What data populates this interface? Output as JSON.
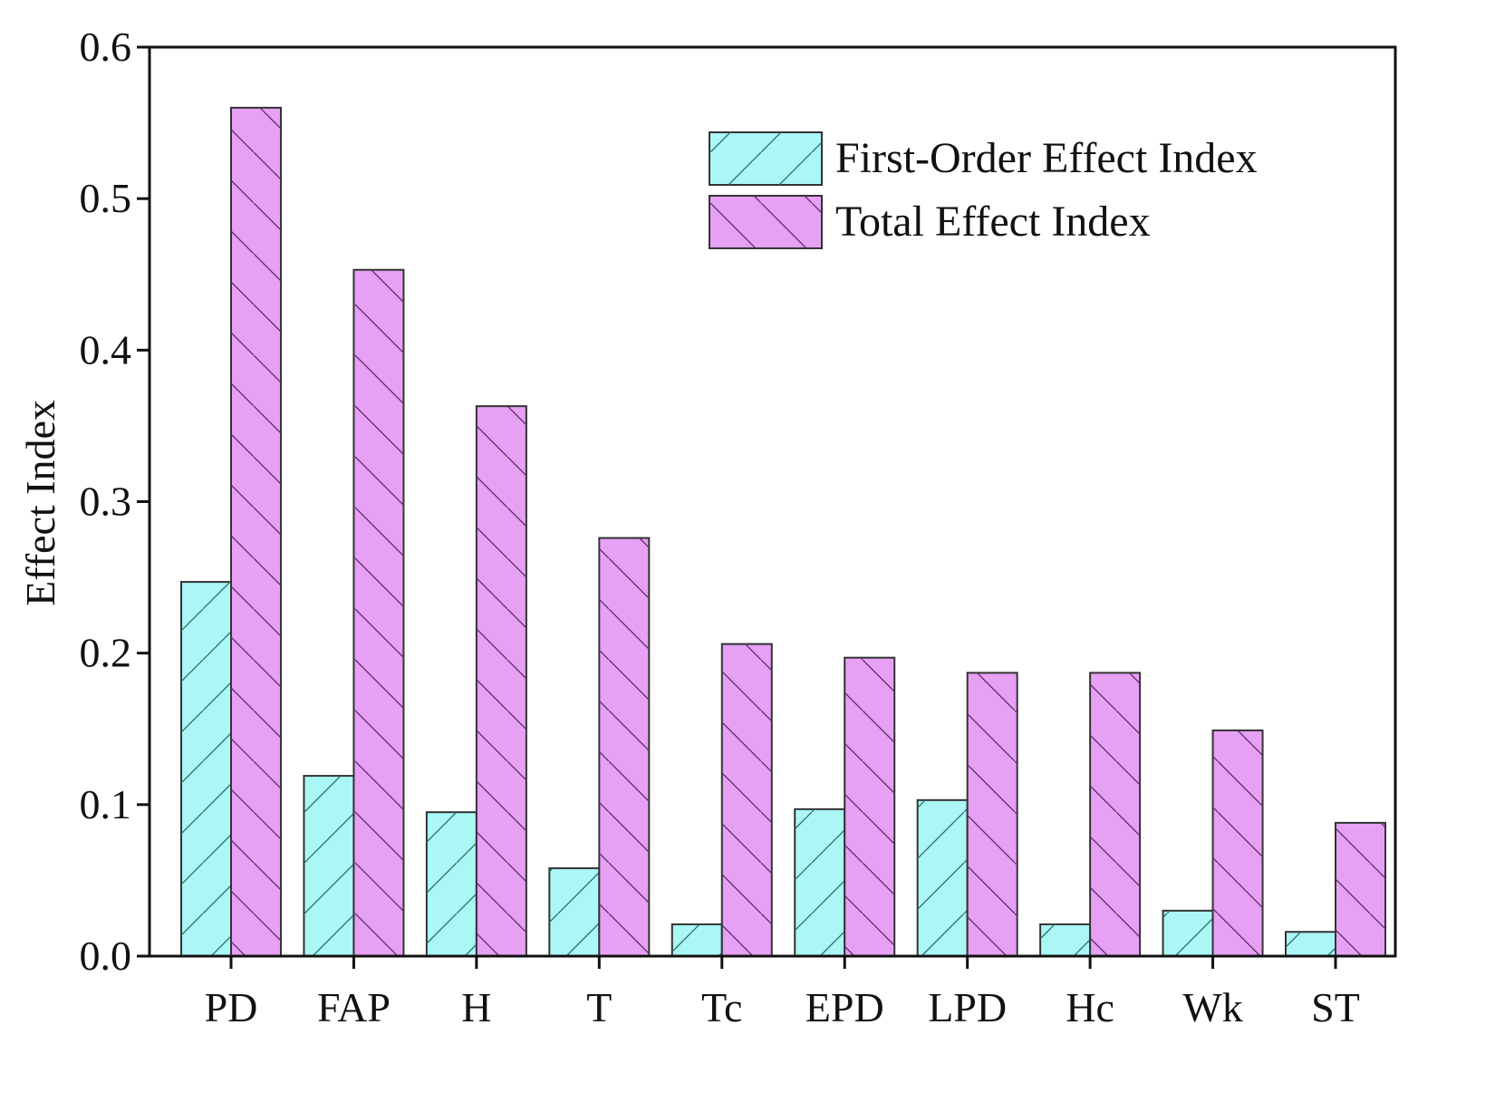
{
  "chart_data": {
    "type": "bar",
    "y_label": "Effect Index",
    "categories": [
      "PD",
      "FAP",
      "H",
      "T",
      "Tc",
      "EPD",
      "LPD",
      "Hc",
      "Wk",
      "ST"
    ],
    "series": [
      {
        "name": "First-Order Effect Index",
        "color": "#aaf7f5",
        "values": [
          0.247,
          0.119,
          0.095,
          0.058,
          0.021,
          0.097,
          0.103,
          0.021,
          0.03,
          0.016
        ]
      },
      {
        "name": "Total Effect Index",
        "color": "#e6a0f4",
        "values": [
          0.56,
          0.453,
          0.363,
          0.276,
          0.206,
          0.197,
          0.187,
          0.187,
          0.149,
          0.088
        ]
      }
    ],
    "ylim": [
      0,
      0.6
    ],
    "yticks": [
      {
        "value": 0,
        "label": "0.0"
      },
      0.1,
      0.2,
      0.3,
      0.4,
      0.5,
      0.6
    ],
    "legend": "upper right"
  }
}
